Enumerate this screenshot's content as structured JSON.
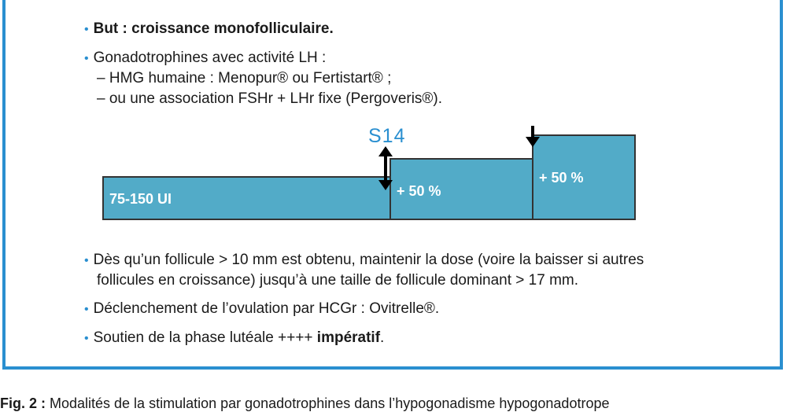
{
  "bullets_top": [
    {
      "bold": "But : croissance monofolliculaire.",
      "text": ""
    },
    {
      "bold": "",
      "text": "Gonadotrophines avec activité LH :"
    }
  ],
  "sub_lines": [
    "– HMG humaine : Menopur® ou Fertistart® ;",
    "– ou une association FSHr + LHr fixe (Pergoveris®)."
  ],
  "diagram": {
    "marker": "S14",
    "step1_label": "75-150 UI",
    "step2_label": "+ 50 %",
    "step3_label": "+ 50 %"
  },
  "bullets_bottom": {
    "b1_line1": "Dès qu’un follicule > 10 mm est obtenu, maintenir la dose (voire la baisser si autres",
    "b1_line2": "follicules en croissance) jusqu’à une taille de follicule dominant > 17 mm.",
    "b2": "Déclenchement de l’ovulation par HCGr : Ovitrelle®.",
    "b3_prefix": "Soutien de la phase lutéale ++++ ",
    "b3_bold": "impératif",
    "b3_suffix": "."
  },
  "caption": {
    "label": "Fig. 2 :",
    "text": " Modalités de la stimulation par gonadotrophines dans l’hypogonadisme hypogonadotrope"
  },
  "colors": {
    "frame": "#2a8fd0",
    "block": "#52abc8",
    "bullet": "#2a8fd0"
  }
}
